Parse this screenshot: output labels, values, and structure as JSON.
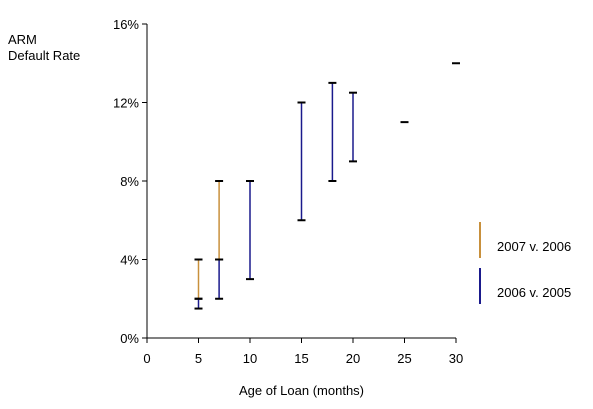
{
  "chart_data": {
    "type": "range-bar",
    "title": "",
    "ylabel_lines": [
      "ARM",
      "Default Rate"
    ],
    "xlabel": "Age of Loan (months)",
    "xlim": [
      0,
      30
    ],
    "ylim": [
      0,
      16
    ],
    "x_ticks": [
      0,
      5,
      10,
      15,
      20,
      25,
      30
    ],
    "y_ticks": [
      0,
      4,
      8,
      12,
      16
    ],
    "y_tick_labels": [
      "0%",
      "4%",
      "8%",
      "12%",
      "16%"
    ],
    "grid": false,
    "legend_position": "right",
    "series": [
      {
        "name": "2007 v. 2006",
        "color": "#c8903c",
        "ranges": [
          {
            "x": 5,
            "low": 2.0,
            "high": 4.0
          },
          {
            "x": 7,
            "low": 4.0,
            "high": 8.0
          }
        ]
      },
      {
        "name": "2006 v. 2005",
        "color": "#1a1a8c",
        "ranges": [
          {
            "x": 5,
            "low": 1.5,
            "high": 2.0
          },
          {
            "x": 7,
            "low": 2.0,
            "high": 4.0
          },
          {
            "x": 10,
            "low": 3.0,
            "high": 8.0
          },
          {
            "x": 15,
            "low": 6.0,
            "high": 12.0
          },
          {
            "x": 18,
            "low": 8.0,
            "high": 13.0
          },
          {
            "x": 20,
            "low": 9.0,
            "high": 12.5
          },
          {
            "x": 25,
            "low": 11.0,
            "high": 11.0
          },
          {
            "x": 30,
            "low": 14.0,
            "high": 14.0
          }
        ]
      }
    ]
  }
}
